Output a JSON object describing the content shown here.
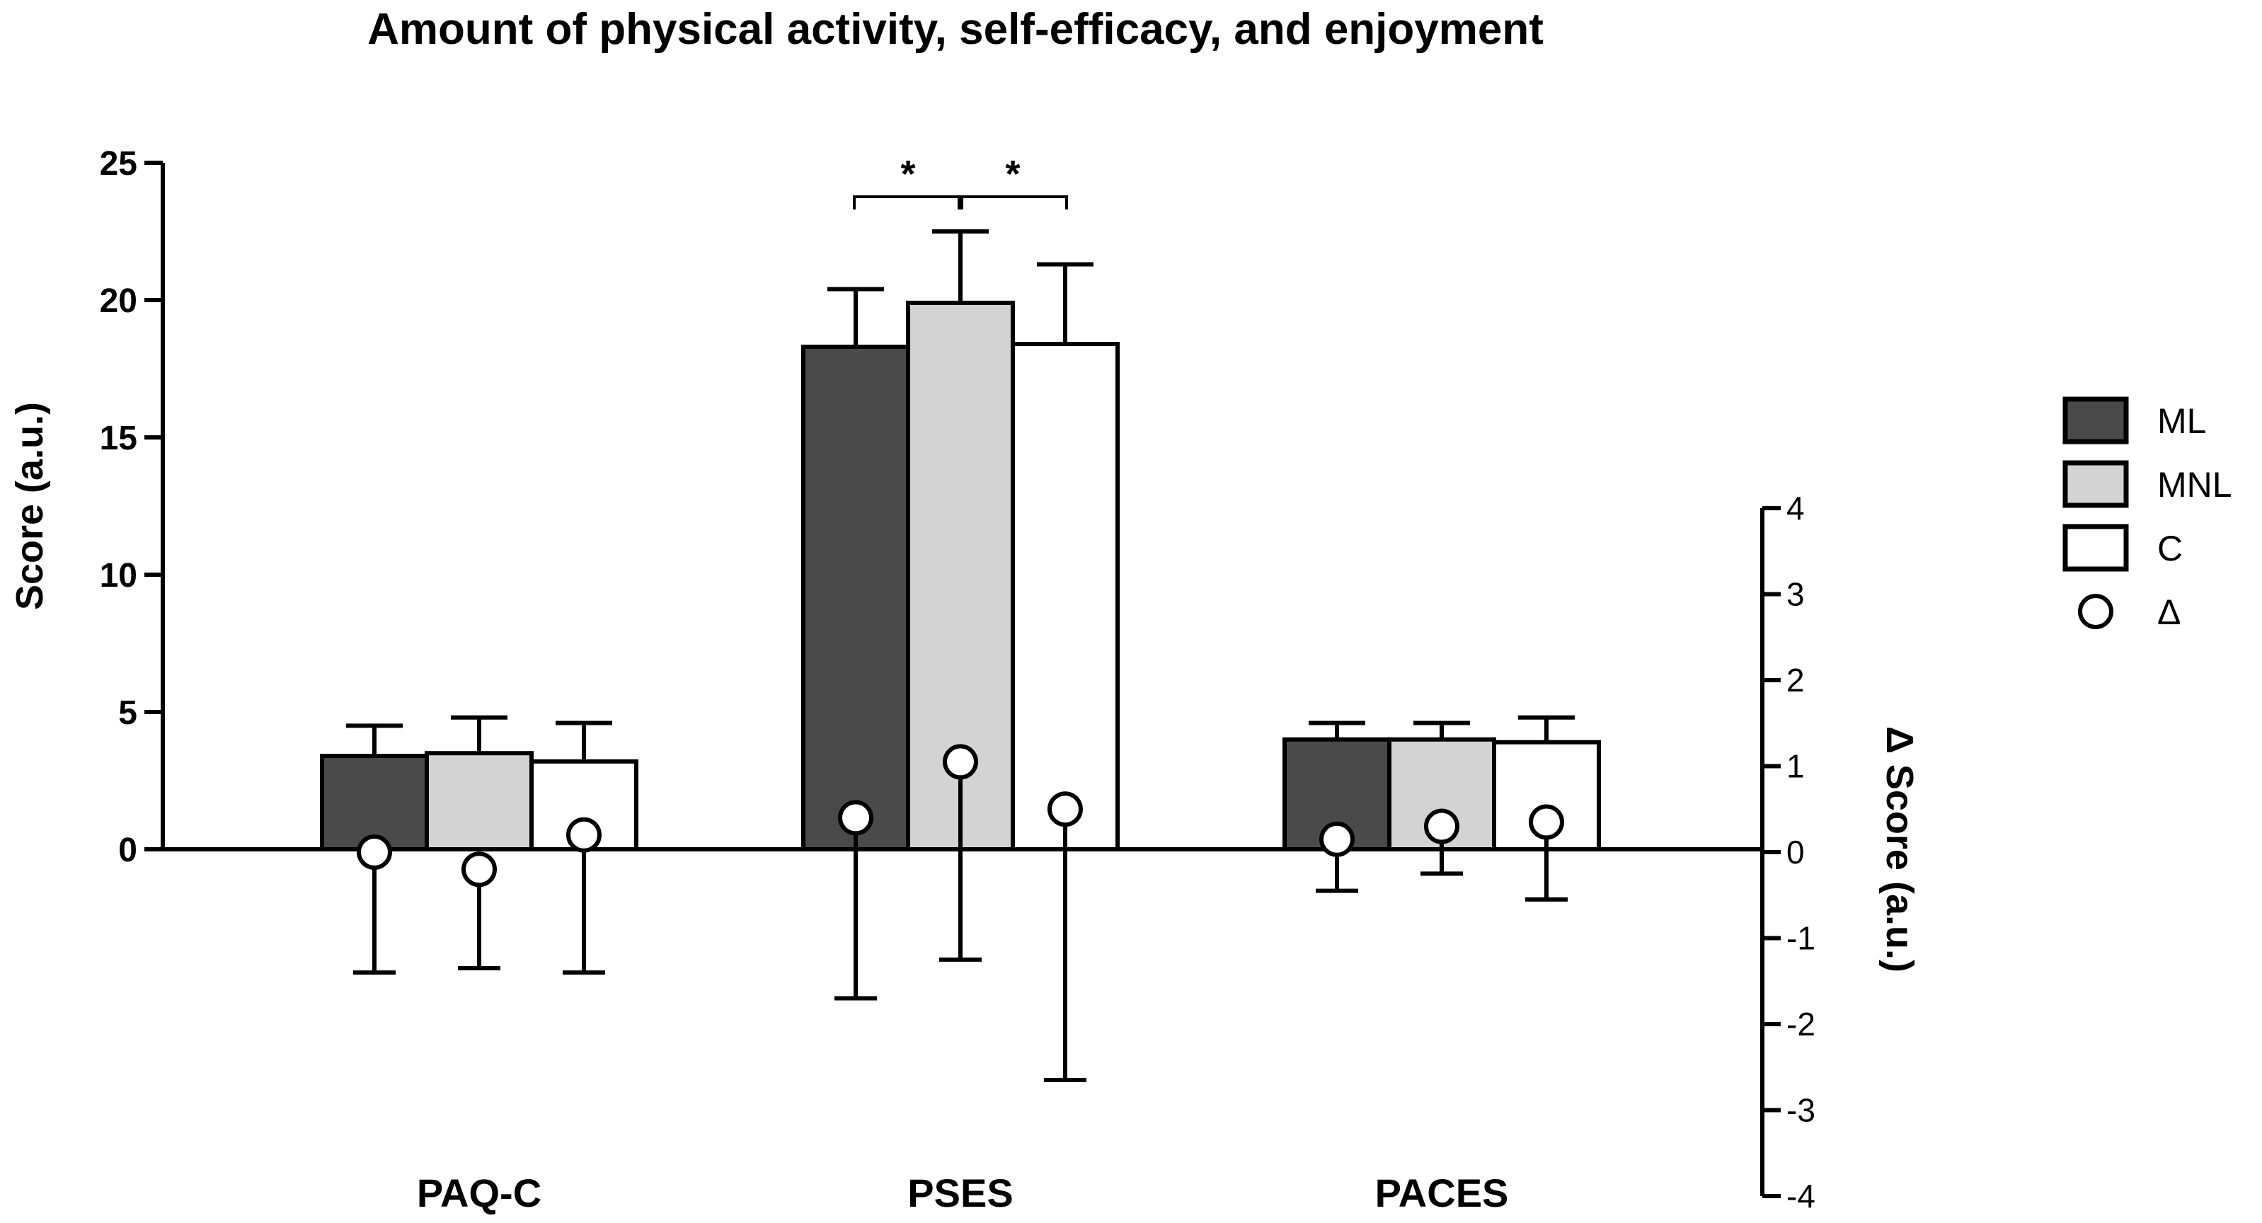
{
  "chart_data": {
    "type": "bar",
    "title": "Amount of physical activity, self-efficacy, and enjoyment",
    "categories": [
      "PAQ-C",
      "PSES",
      "PACES"
    ],
    "xlabel": "",
    "ylabel": "Score (a.u.)",
    "ylim": [
      0,
      25
    ],
    "yticks": [
      "0",
      "5",
      "10",
      "15",
      "20",
      "25"
    ],
    "y2label": "Δ Score (a.u.)",
    "y2lim": [
      -4,
      4
    ],
    "y2ticks": [
      "-4",
      "-3",
      "-2",
      "-1",
      "0",
      "1",
      "2",
      "3",
      "4"
    ],
    "series": [
      {
        "name": "ML",
        "color": "#4a4a4a",
        "values": [
          3.4,
          18.3,
          4.0
        ],
        "errors": [
          1.1,
          2.1,
          0.6
        ]
      },
      {
        "name": "MNL",
        "color": "#d3d3d3",
        "values": [
          3.5,
          19.9,
          4.0
        ],
        "errors": [
          1.3,
          2.6,
          0.6
        ]
      },
      {
        "name": "C",
        "color": "#ffffff",
        "values": [
          3.2,
          18.4,
          3.9
        ],
        "errors": [
          1.4,
          2.9,
          0.9
        ]
      }
    ],
    "delta": {
      "name": "Δ",
      "values": [
        [
          0.0,
          -0.2,
          0.2
        ],
        [
          0.4,
          1.05,
          0.5
        ],
        [
          0.15,
          0.3,
          0.35
        ]
      ],
      "errors": [
        [
          1.4,
          1.15,
          1.6
        ],
        [
          2.1,
          2.3,
          3.15
        ],
        [
          0.6,
          0.55,
          0.9
        ]
      ]
    },
    "significance": [
      {
        "category": "PSES",
        "from": "ML",
        "to": "MNL",
        "label": "*"
      },
      {
        "category": "PSES",
        "from": "MNL",
        "to": "C",
        "label": "*"
      }
    ],
    "legend_position": "right"
  }
}
